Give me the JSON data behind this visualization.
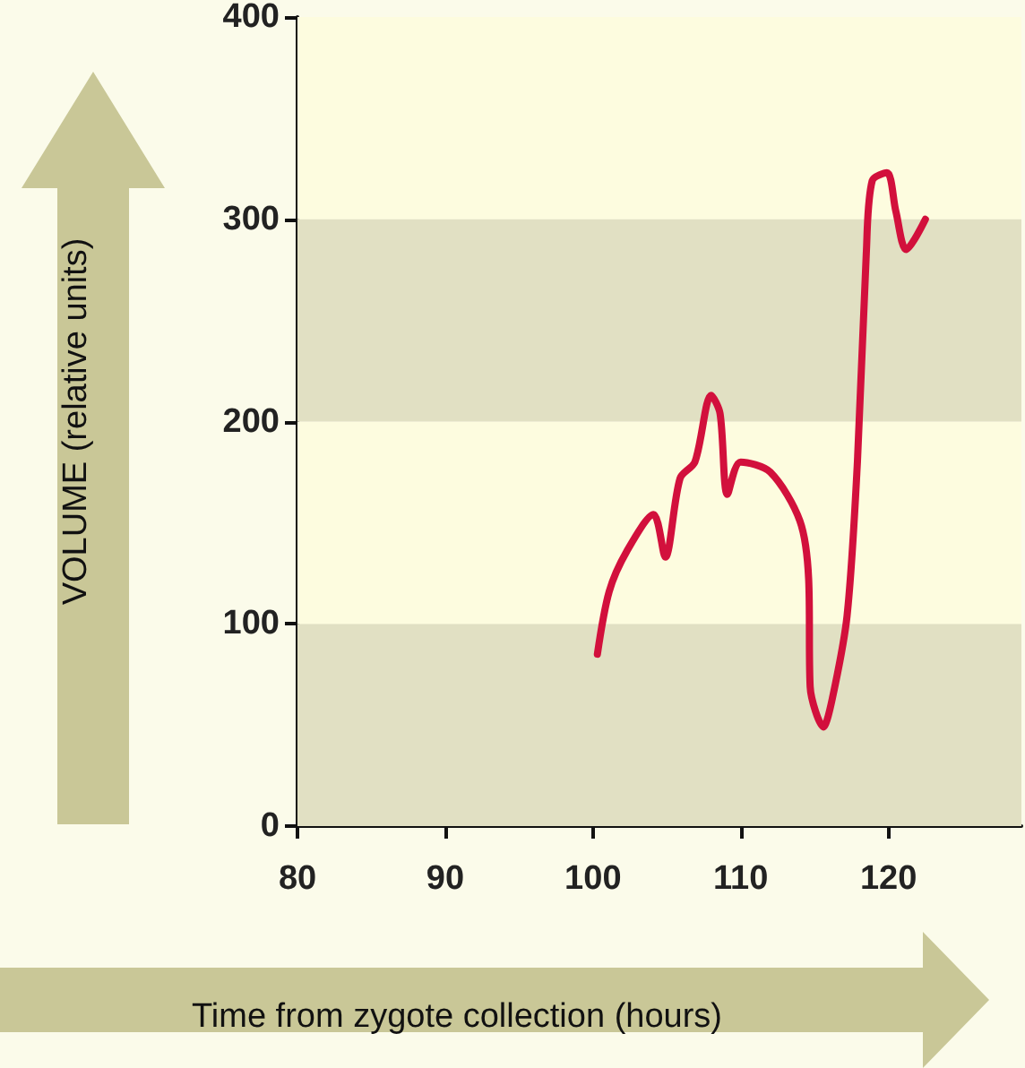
{
  "chart_data": {
    "type": "line",
    "xlabel": "Time from zygote collection (hours)",
    "ylabel": "VOLUME (relative units)",
    "xlim": [
      80,
      129
    ],
    "xticks": [
      80,
      90,
      100,
      110,
      120
    ],
    "ylim": [
      0,
      400
    ],
    "yticks": [
      0,
      100,
      200,
      300,
      400
    ],
    "grid": false,
    "marker": "none",
    "line_style": "solid",
    "bands": [
      {
        "axis": "y",
        "from": 0,
        "to": 100,
        "color": "#e1e0c3"
      },
      {
        "axis": "y",
        "from": 100,
        "to": 200,
        "color": "#fdfcdf"
      },
      {
        "axis": "y",
        "from": 300,
        "to": 400,
        "color": "#fdfcdf"
      },
      {
        "axis": "y",
        "from": 200,
        "to": 300,
        "color": "#e1e0c3"
      }
    ],
    "series": [
      {
        "color": "#d2103c",
        "x": [
          100.3,
          101.1,
          102.3,
          104.1,
          104.9,
          105.9,
          106.9,
          108.0,
          108.6,
          109.1,
          110.0,
          112.0,
          114.0,
          114.6,
          114.7,
          115.6,
          116.2,
          117.2,
          117.9,
          118.5,
          118.9,
          119.9,
          120.5,
          121.2,
          122.5
        ],
        "values": [
          85,
          116,
          136,
          154,
          133,
          172,
          180,
          213,
          204,
          164,
          180,
          175,
          151,
          122,
          69,
          49,
          63,
          104,
          180,
          283,
          319,
          323,
          304,
          285,
          300
        ]
      }
    ]
  }
}
